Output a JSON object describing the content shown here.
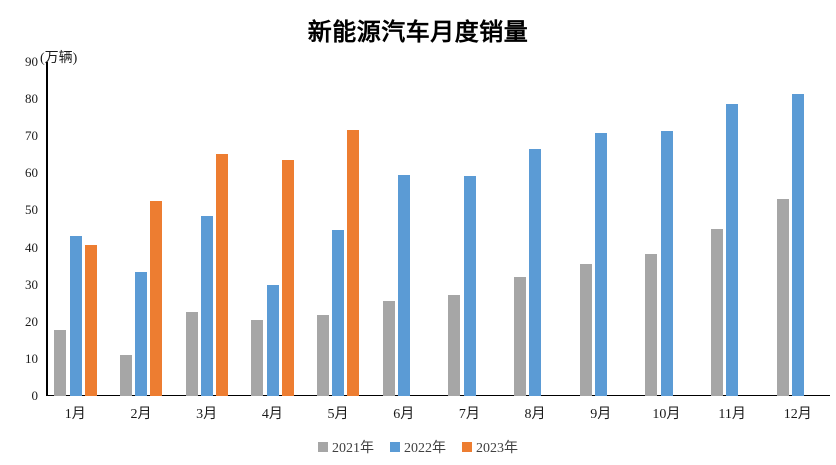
{
  "chart_data": {
    "type": "bar",
    "title": "新能源汽车月度销量",
    "ylabel_unit": "(万辆)",
    "xlabel": "",
    "ylabel": "",
    "ylim": [
      0,
      90
    ],
    "yticks": [
      0,
      10,
      20,
      30,
      40,
      50,
      60,
      70,
      80,
      90
    ],
    "grid": false,
    "legend_position": "bottom",
    "categories": [
      "1月",
      "2月",
      "3月",
      "4月",
      "5月",
      "6月",
      "7月",
      "8月",
      "9月",
      "10月",
      "11月",
      "12月"
    ],
    "series": [
      {
        "name": "2021年",
        "color": "#A6A6A6",
        "values": [
          17.9,
          11.0,
          22.6,
          20.6,
          21.7,
          25.6,
          27.1,
          32.1,
          35.7,
          38.3,
          45.0,
          53.1
        ]
      },
      {
        "name": "2022年",
        "color": "#5B9BD5",
        "values": [
          43.1,
          33.4,
          48.4,
          29.9,
          44.7,
          59.6,
          59.3,
          66.6,
          70.8,
          71.4,
          78.6,
          81.4
        ]
      },
      {
        "name": "2023年",
        "color": "#ED7D31",
        "values": [
          40.8,
          52.5,
          65.3,
          63.6,
          71.7,
          null,
          null,
          null,
          null,
          null,
          null,
          null
        ]
      }
    ],
    "axis_color": "#000000",
    "background_color": "#FFFFFF"
  }
}
